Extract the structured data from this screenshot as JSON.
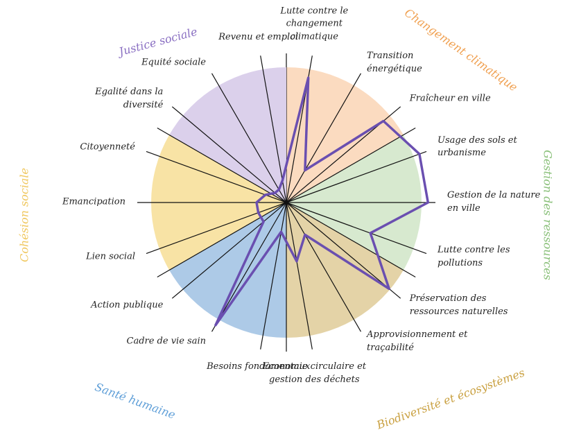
{
  "chart_data": {
    "type": "radar",
    "categories": [
      "Lutte contre le changement climatique",
      "Transition énergétique",
      "Fraîcheur en ville",
      "Usage des sols et urbanisme",
      "Gestion de la nature en ville",
      "Lutte contre les pollutions",
      "Préservation des ressources naturelles",
      "Approvisionnement et traçabilité",
      "Economie circulaire et gestion des déchets",
      "Besoins fondamentaux",
      "Cadre de vie sain",
      "Action publique",
      "Lien social",
      "Emancipation",
      "Citoyenneté",
      "Egalité dans la diversité",
      "Equité sociale",
      "Revenu et emploi"
    ],
    "groups": [
      {
        "name": "Changement climatique",
        "color": "#fbd9bd",
        "label_color": "#f0a050"
      },
      {
        "name": "Gestion des ressources",
        "color": "#d5e8cc",
        "label_color": "#8ac07a"
      },
      {
        "name": "Biodiversité et écosystèmes",
        "color": "#e3d1a2",
        "label_color": "#c9a040"
      },
      {
        "name": "Santé humaine",
        "color": "#a9c7e6",
        "label_color": "#5f9fd8"
      },
      {
        "name": "Cohésion sociale",
        "color": "#f8e2a0",
        "label_color": "#f0c860"
      },
      {
        "name": "Justice sociale",
        "color": "#d9cdea",
        "label_color": "#8a6fc2"
      }
    ],
    "series": [
      {
        "color": "#6a4fb0",
        "values": [
          8.5,
          2.5,
          8.5,
          9.5,
          9.5,
          6,
          9,
          2.5,
          4,
          2,
          9.5,
          2,
          2,
          2,
          1.5,
          1,
          1,
          1.5
        ]
      }
    ],
    "rlim": [
      0,
      10
    ]
  }
}
